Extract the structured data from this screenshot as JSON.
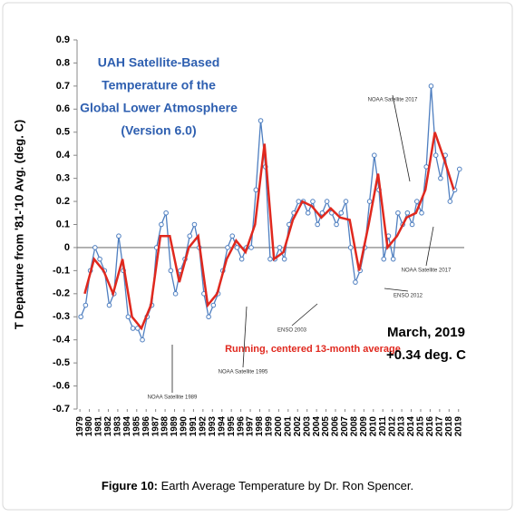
{
  "chart_data": {
    "type": "line",
    "title_lines": [
      "UAH Satellite-Based",
      "Temperature of the",
      "Global Lower Atmosphere",
      "(Version 6.0)"
    ],
    "y_label": "T Departure from '81-'10 Avg. (deg. C)",
    "series": [
      {
        "color": "#4f7fc0",
        "markers": true,
        "x": [
          1979.1,
          1979.6,
          1980.1,
          1980.6,
          1981.1,
          1981.6,
          1982.1,
          1982.6,
          1983.1,
          1983.6,
          1984.1,
          1984.6,
          1985.1,
          1985.6,
          1986.1,
          1986.6,
          1987.1,
          1987.6,
          1988.1,
          1988.6,
          1989.1,
          1989.6,
          1990.1,
          1990.6,
          1991.1,
          1991.6,
          1992.1,
          1992.6,
          1993.1,
          1993.6,
          1994.1,
          1994.6,
          1995.1,
          1995.6,
          1996.1,
          1996.6,
          1997.1,
          1997.6,
          1998.1,
          1998.6,
          1999.1,
          1999.6,
          2000.1,
          2000.6,
          2001.1,
          2001.6,
          2002.1,
          2002.6,
          2003.1,
          2003.6,
          2004.1,
          2004.6,
          2005.1,
          2005.6,
          2006.1,
          2006.6,
          2007.1,
          2007.6,
          2008.1,
          2008.6,
          2009.1,
          2009.6,
          2010.1,
          2010.6,
          2011.1,
          2011.6,
          2012.1,
          2012.6,
          2013.1,
          2013.6,
          2014.1,
          2014.6,
          2015.1,
          2015.6,
          2016.1,
          2016.6,
          2017.1,
          2017.6,
          2018.1,
          2018.6,
          2019.1
        ],
        "values": [
          -0.3,
          -0.25,
          -0.1,
          0.0,
          -0.05,
          -0.1,
          -0.25,
          -0.2,
          0.05,
          -0.1,
          -0.3,
          -0.35,
          -0.35,
          -0.4,
          -0.3,
          -0.25,
          0.0,
          0.1,
          0.15,
          -0.1,
          -0.2,
          -0.1,
          -0.05,
          0.05,
          0.1,
          0.0,
          -0.2,
          -0.3,
          -0.25,
          -0.2,
          -0.1,
          0.0,
          0.05,
          0.0,
          -0.05,
          0.0,
          0.0,
          0.25,
          0.55,
          0.35,
          -0.05,
          -0.05,
          0.0,
          -0.05,
          0.1,
          0.15,
          0.2,
          0.2,
          0.15,
          0.2,
          0.1,
          0.15,
          0.2,
          0.15,
          0.1,
          0.15,
          0.2,
          0.0,
          -0.15,
          -0.1,
          0.0,
          0.2,
          0.4,
          0.25,
          -0.05,
          0.05,
          -0.05,
          0.15,
          0.1,
          0.15,
          0.1,
          0.2,
          0.15,
          0.35,
          0.7,
          0.4,
          0.3,
          0.4,
          0.2,
          0.25,
          0.34
        ]
      },
      {
        "name": "Running, centered 13-month average",
        "color": "#e0281e",
        "x": [
          1979.5,
          1980.5,
          1981.5,
          1982.5,
          1983.5,
          1984.5,
          1985.5,
          1986.5,
          1987.5,
          1988.5,
          1989.5,
          1990.5,
          1991.5,
          1992.5,
          1993.5,
          1994.5,
          1995.5,
          1996.5,
          1997.5,
          1998.5,
          1999.5,
          2000.5,
          2001.5,
          2002.5,
          2003.5,
          2004.5,
          2005.5,
          2006.5,
          2007.5,
          2008.5,
          2009.5,
          2010.5,
          2011.5,
          2012.5,
          2013.5,
          2014.5,
          2015.5,
          2016.5,
          2017.5,
          2018.5
        ],
        "values": [
          -0.2,
          -0.05,
          -0.1,
          -0.2,
          -0.05,
          -0.3,
          -0.35,
          -0.25,
          0.05,
          0.05,
          -0.15,
          0.0,
          0.05,
          -0.25,
          -0.2,
          -0.05,
          0.03,
          -0.02,
          0.1,
          0.45,
          -0.05,
          -0.02,
          0.12,
          0.2,
          0.18,
          0.13,
          0.17,
          0.13,
          0.12,
          -0.1,
          0.1,
          0.32,
          0.0,
          0.05,
          0.13,
          0.15,
          0.25,
          0.5,
          0.38,
          0.25
        ]
      }
    ],
    "xlim": [
      1978.7,
      2019.6
    ],
    "xticks": [
      1979,
      1980,
      1981,
      1982,
      1983,
      1984,
      1985,
      1986,
      1987,
      1988,
      1989,
      1990,
      1991,
      1992,
      1993,
      1994,
      1995,
      1996,
      1997,
      1998,
      1999,
      2000,
      2001,
      2002,
      2003,
      2004,
      2005,
      2006,
      2007,
      2008,
      2009,
      2010,
      2011,
      2012,
      2013,
      2014,
      2015,
      2016,
      2017,
      2018,
      2019
    ],
    "ylim": [
      -0.7,
      0.9
    ],
    "yticks": [
      -0.7,
      -0.6,
      -0.5,
      -0.4,
      -0.3,
      -0.2,
      -0.1,
      0,
      0.1,
      0.2,
      0.3,
      0.4,
      0.5,
      0.6,
      0.7,
      0.8,
      0.9
    ],
    "annotations": [
      "March, 2019",
      "+0.34 deg. C"
    ],
    "notes": [
      "NOAA Satellite 1989",
      "NOAA Satellite 1995",
      "ENSO 2003",
      "NOAA Satellite 2017",
      "NOAA Satellite 2017",
      "ENSO 2012"
    ]
  },
  "caption": {
    "label": "Figure 10:",
    "text": "Earth Average Temperature by Dr. Ron Spencer."
  }
}
